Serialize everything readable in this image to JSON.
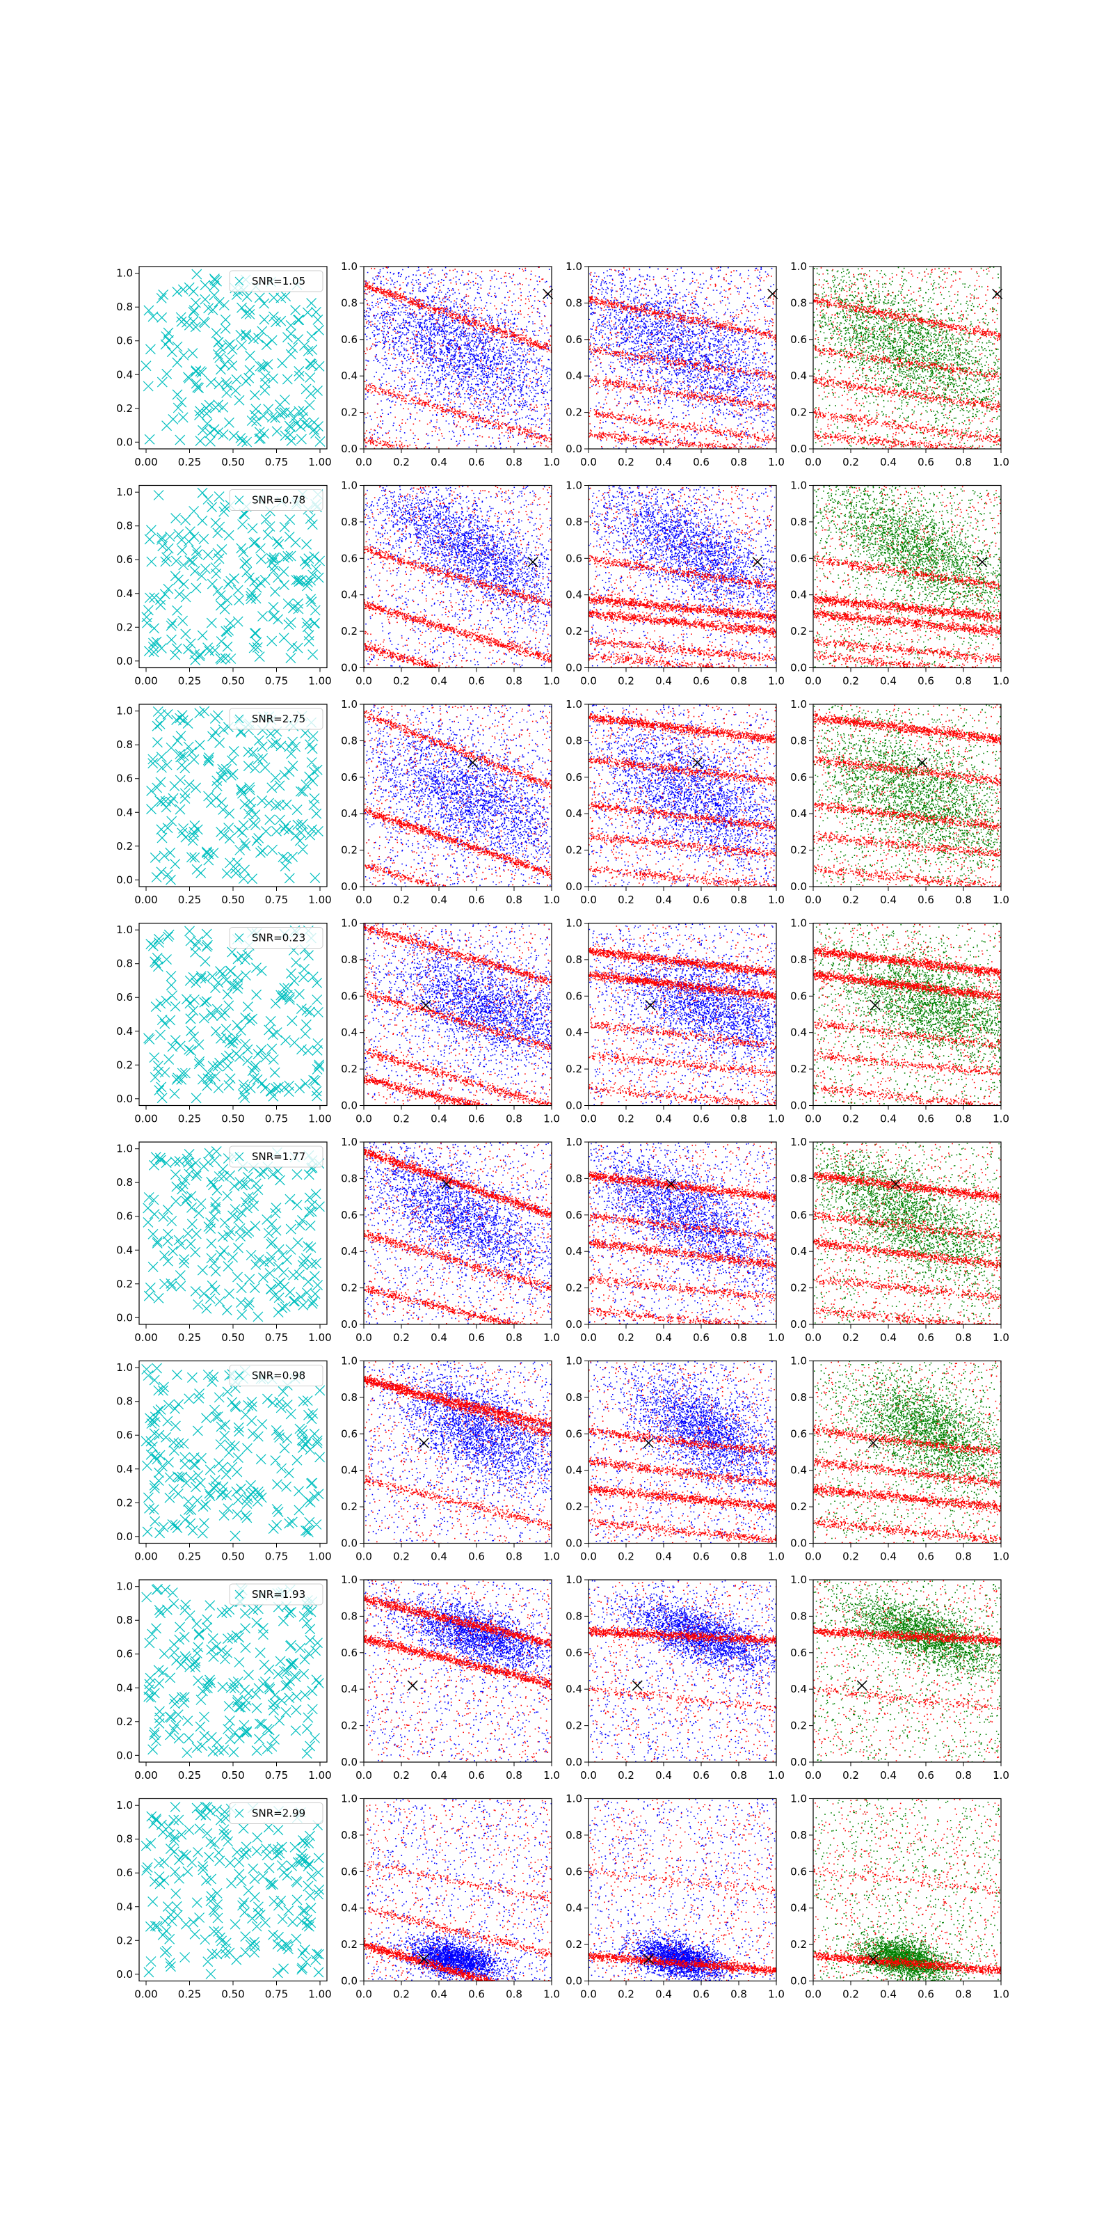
{
  "chart_data": {
    "type": "scatter",
    "layout": {
      "rows": 8,
      "columns": 4
    },
    "colors": {
      "grid_points": "#00bfbf",
      "points_blue": "#0000ff",
      "points_green": "#008000",
      "bands": "#ff0000",
      "marker": "#000000"
    },
    "column_axes": [
      {
        "xlim": [
          0,
          1
        ],
        "ylim": [
          0,
          1
        ],
        "xticks": [
          "0.00",
          "0.25",
          "0.50",
          "0.75",
          "1.00"
        ],
        "yticks": [
          "0.0",
          "0.2",
          "0.4",
          "0.6",
          "0.8",
          "1.0"
        ]
      },
      {
        "xlim": [
          0,
          1
        ],
        "ylim": [
          0,
          1
        ],
        "xticks": [
          "0.0",
          "0.2",
          "0.4",
          "0.6",
          "0.8",
          "1.0"
        ],
        "yticks": [
          "0.0",
          "0.2",
          "0.4",
          "0.6",
          "0.8",
          "1.0"
        ]
      },
      {
        "xlim": [
          0,
          1
        ],
        "ylim": [
          0,
          1
        ],
        "xticks": [
          "0.0",
          "0.2",
          "0.4",
          "0.6",
          "0.8",
          "1.0"
        ],
        "yticks": [
          "0.0",
          "0.2",
          "0.4",
          "0.6",
          "0.8",
          "1.0"
        ]
      },
      {
        "xlim": [
          0,
          1
        ],
        "ylim": [
          0,
          1
        ],
        "xticks": [
          "0.0",
          "0.2",
          "0.4",
          "0.6",
          "0.8",
          "1.0"
        ],
        "yticks": [
          "0.0",
          "0.2",
          "0.4",
          "0.6",
          "0.8",
          "1.0"
        ]
      }
    ],
    "rows": [
      {
        "legend": "SNR=1.05",
        "marker": [
          0.98,
          0.85
        ],
        "blob": {
          "cx": 0.5,
          "cy": 0.55,
          "sx": 0.28,
          "sy": 0.3,
          "slope": -0.4
        },
        "bands2": [
          [
            0.9,
            -0.35,
            1.0
          ],
          [
            0.35,
            -0.3,
            0.6
          ],
          [
            0.05,
            -0.2,
            0.6
          ]
        ],
        "bands3": [
          [
            0.82,
            -0.2,
            0.8
          ],
          [
            0.55,
            -0.15,
            0.5
          ],
          [
            0.38,
            -0.15,
            0.6
          ],
          [
            0.2,
            -0.15,
            0.5
          ],
          [
            0.08,
            -0.1,
            0.6
          ]
        ]
      },
      {
        "legend": "SNR=0.78",
        "marker": [
          0.9,
          0.58
        ],
        "blob": {
          "cx": 0.55,
          "cy": 0.65,
          "sx": 0.25,
          "sy": 0.25,
          "slope": -0.5
        },
        "bands2": [
          [
            0.65,
            -0.3,
            0.8
          ],
          [
            0.35,
            -0.3,
            1.0
          ],
          [
            0.12,
            -0.3,
            0.9
          ]
        ],
        "bands3": [
          [
            0.6,
            -0.15,
            0.7
          ],
          [
            0.38,
            -0.1,
            1.4
          ],
          [
            0.3,
            -0.1,
            1.2
          ],
          [
            0.15,
            -0.1,
            0.6
          ],
          [
            0.07,
            -0.1,
            0.5
          ]
        ]
      },
      {
        "legend": "SNR=2.75",
        "marker": [
          0.58,
          0.68
        ],
        "blob": {
          "cx": 0.55,
          "cy": 0.5,
          "sx": 0.25,
          "sy": 0.3,
          "slope": -0.4
        },
        "bands2": [
          [
            0.95,
            -0.4,
            0.8
          ],
          [
            0.42,
            -0.35,
            1.2
          ],
          [
            0.12,
            -0.3,
            0.6
          ]
        ],
        "bands3": [
          [
            0.93,
            -0.12,
            1.4
          ],
          [
            0.7,
            -0.12,
            0.8
          ],
          [
            0.45,
            -0.12,
            0.8
          ],
          [
            0.28,
            -0.1,
            0.6
          ],
          [
            0.1,
            -0.1,
            0.5
          ]
        ]
      },
      {
        "legend": "SNR=0.23",
        "marker": [
          0.33,
          0.55
        ],
        "blob": {
          "cx": 0.65,
          "cy": 0.55,
          "sx": 0.25,
          "sy": 0.25,
          "slope": -0.3
        },
        "bands2": [
          [
            0.98,
            -0.3,
            1.0
          ],
          [
            0.62,
            -0.3,
            0.7
          ],
          [
            0.3,
            -0.3,
            0.8
          ],
          [
            0.15,
            -0.25,
            1.2
          ]
        ],
        "bands3": [
          [
            0.85,
            -0.12,
            1.6
          ],
          [
            0.72,
            -0.12,
            1.6
          ],
          [
            0.45,
            -0.12,
            0.5
          ],
          [
            0.28,
            -0.1,
            0.5
          ],
          [
            0.1,
            -0.1,
            0.4
          ]
        ]
      },
      {
        "legend": "SNR=1.77",
        "marker": [
          0.44,
          0.77
        ],
        "blob": {
          "cx": 0.5,
          "cy": 0.6,
          "sx": 0.25,
          "sy": 0.25,
          "slope": -0.5
        },
        "bands2": [
          [
            0.95,
            -0.35,
            1.6
          ],
          [
            0.5,
            -0.3,
            0.8
          ],
          [
            0.2,
            -0.25,
            0.8
          ]
        ],
        "bands3": [
          [
            0.82,
            -0.12,
            1.4
          ],
          [
            0.6,
            -0.12,
            0.6
          ],
          [
            0.45,
            -0.12,
            1.0
          ],
          [
            0.25,
            -0.1,
            0.5
          ],
          [
            0.08,
            -0.1,
            0.5
          ]
        ]
      },
      {
        "legend": "SNR=0.98",
        "marker": [
          0.32,
          0.55
        ],
        "blob": {
          "cx": 0.62,
          "cy": 0.62,
          "sx": 0.2,
          "sy": 0.25,
          "slope": -0.4
        },
        "bands2": [
          [
            0.9,
            -0.3,
            0.8
          ],
          [
            0.9,
            -0.25,
            1.6
          ],
          [
            0.35,
            -0.25,
            0.6
          ]
        ],
        "bands3": [
          [
            0.62,
            -0.12,
            0.8
          ],
          [
            0.45,
            -0.12,
            0.8
          ],
          [
            0.3,
            -0.1,
            1.2
          ],
          [
            0.12,
            -0.1,
            0.6
          ]
        ]
      },
      {
        "legend": "SNR=1.93",
        "marker": [
          0.26,
          0.42
        ],
        "blob": {
          "cx": 0.6,
          "cy": 0.7,
          "sx": 0.2,
          "sy": 0.15,
          "slope": -0.3
        },
        "bands2": [
          [
            0.68,
            -0.25,
            1.6
          ],
          [
            0.9,
            -0.25,
            1.6
          ]
        ],
        "bands3": [
          [
            0.72,
            -0.05,
            1.6
          ],
          [
            0.4,
            -0.1,
            0.3
          ]
        ]
      },
      {
        "legend": "SNR=2.99",
        "marker": [
          0.32,
          0.12
        ],
        "blob": {
          "cx": 0.48,
          "cy": 0.12,
          "sx": 0.12,
          "sy": 0.1,
          "slope": -0.2
        },
        "bands2": [
          [
            0.2,
            -0.3,
            1.8
          ],
          [
            0.4,
            -0.25,
            0.5
          ],
          [
            0.65,
            -0.2,
            0.3
          ]
        ],
        "bands3": [
          [
            0.14,
            -0.08,
            1.6
          ],
          [
            0.6,
            -0.1,
            0.2
          ]
        ]
      }
    ]
  }
}
